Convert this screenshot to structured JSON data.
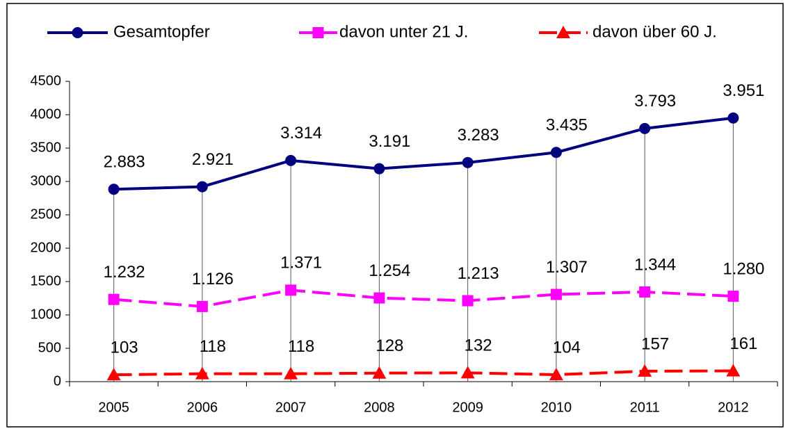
{
  "chart_data": {
    "type": "line",
    "categories": [
      "2005",
      "2006",
      "2007",
      "2008",
      "2009",
      "2010",
      "2011",
      "2012"
    ],
    "series": [
      {
        "name": "Gesamtopfer",
        "color": "#000080",
        "marker": "circle",
        "dashed": false,
        "values": [
          2883,
          2921,
          3314,
          3191,
          3283,
          3435,
          3793,
          3951
        ],
        "value_labels": [
          "2.883",
          "2.921",
          "3.314",
          "3.191",
          "3.283",
          "3.435",
          "3.793",
          "3.951"
        ]
      },
      {
        "name": "davon unter 21 J.",
        "color": "#ff00ff",
        "marker": "square",
        "dashed": true,
        "values": [
          1232,
          1126,
          1371,
          1254,
          1213,
          1307,
          1344,
          1280
        ],
        "value_labels": [
          "1.232",
          "1.126",
          "1.371",
          "1.254",
          "1.213",
          "1.307",
          "1.344",
          "1.280"
        ]
      },
      {
        "name": "davon über 60 J.",
        "color": "#ff0000",
        "marker": "triangle",
        "dashed": true,
        "values": [
          103,
          118,
          118,
          128,
          132,
          104,
          157,
          161
        ],
        "value_labels": [
          "103",
          "118",
          "118",
          "128",
          "132",
          "104",
          "157",
          "161"
        ]
      }
    ],
    "ylim": [
      0,
      4500
    ],
    "yticks": [
      0,
      500,
      1000,
      1500,
      2000,
      2500,
      3000,
      3500,
      4000,
      4500
    ],
    "drop_lines": true,
    "legend": "top"
  }
}
